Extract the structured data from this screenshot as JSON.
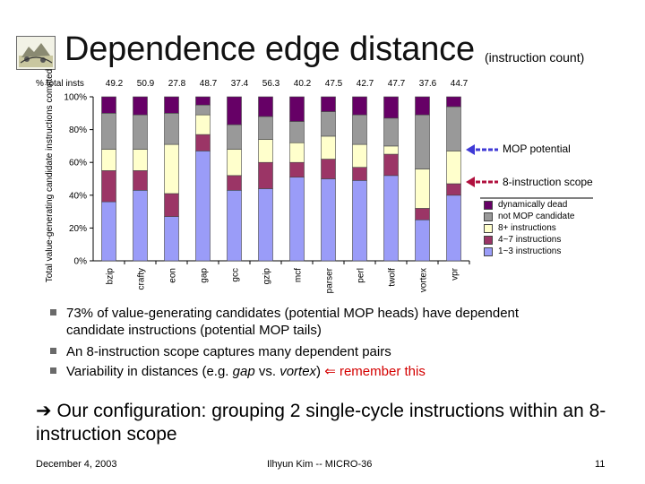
{
  "slide": {
    "title": "Dependence edge distance",
    "subtitle": "(instruction count)",
    "totals_label": "% total insts",
    "totals": [
      "49.2",
      "50.9",
      "27.8",
      "48.7",
      "37.4",
      "56.3",
      "40.2",
      "47.5",
      "42.7",
      "47.7",
      "37.6",
      "44.7"
    ],
    "annotations": {
      "mop": "MOP potential",
      "scope": "8-instruction scope"
    },
    "bullets": [
      {
        "text": "73% of value-generating candidates (potential MOP heads) have dependent candidate instructions (potential MOP tails)"
      },
      {
        "text": "An 8-instruction scope captures many dependent pairs"
      },
      {
        "pre": "Variability in distances (e.g. ",
        "em1": "gap",
        "mid": " vs. ",
        "em2": "vortex",
        "post": ") ",
        "arrow": "⇐",
        "remember": " remember this"
      }
    ],
    "config": {
      "arrow": "➔",
      "text": " Our configuration: grouping 2 single-cycle instructions within an 8-instruction scope"
    },
    "footer": {
      "date": "December 4, 2003",
      "author": "Ilhyun Kim -- MICRO-36",
      "page": "11"
    },
    "colors": {
      "annotation_arrow_mop": "#3f3ad6",
      "annotation_arrow_scope": "#b0103e",
      "remember": "#d40000"
    }
  },
  "chart_data": {
    "type": "bar",
    "stacked": true,
    "ylabel": "Total value-generating candidate instructions comitted",
    "yticks": [
      "0%",
      "20%",
      "40%",
      "60%",
      "80%",
      "100%"
    ],
    "ylim": [
      0,
      100
    ],
    "grid": false,
    "legend_position": "right",
    "categories": [
      "bzip",
      "crafty",
      "eon",
      "gap",
      "gcc",
      "gzip",
      "mcf",
      "parser",
      "perl",
      "twolf",
      "vortex",
      "vpr"
    ],
    "series": [
      {
        "name": "1~3 instructions",
        "color": "#9a9cf8",
        "values": [
          36,
          43,
          27,
          67,
          43,
          44,
          51,
          50,
          49,
          52,
          25,
          40
        ]
      },
      {
        "name": "4~7 instructions",
        "color": "#9b3566",
        "values": [
          19,
          12,
          14,
          10,
          9,
          16,
          9,
          12,
          8,
          13,
          7,
          7
        ]
      },
      {
        "name": "8+ instructions",
        "color": "#ffffcc",
        "values": [
          13,
          13,
          30,
          12,
          16,
          14,
          12,
          14,
          14,
          5,
          24,
          20
        ]
      },
      {
        "name": "not MOP candidate",
        "color": "#999999",
        "values": [
          22,
          21,
          19,
          6,
          15,
          14,
          13,
          15,
          18,
          17,
          33,
          27
        ]
      },
      {
        "name": "dynamically dead",
        "color": "#660066",
        "values": [
          10,
          11,
          10,
          5,
          17,
          12,
          15,
          9,
          11,
          13,
          11,
          6
        ]
      }
    ]
  }
}
